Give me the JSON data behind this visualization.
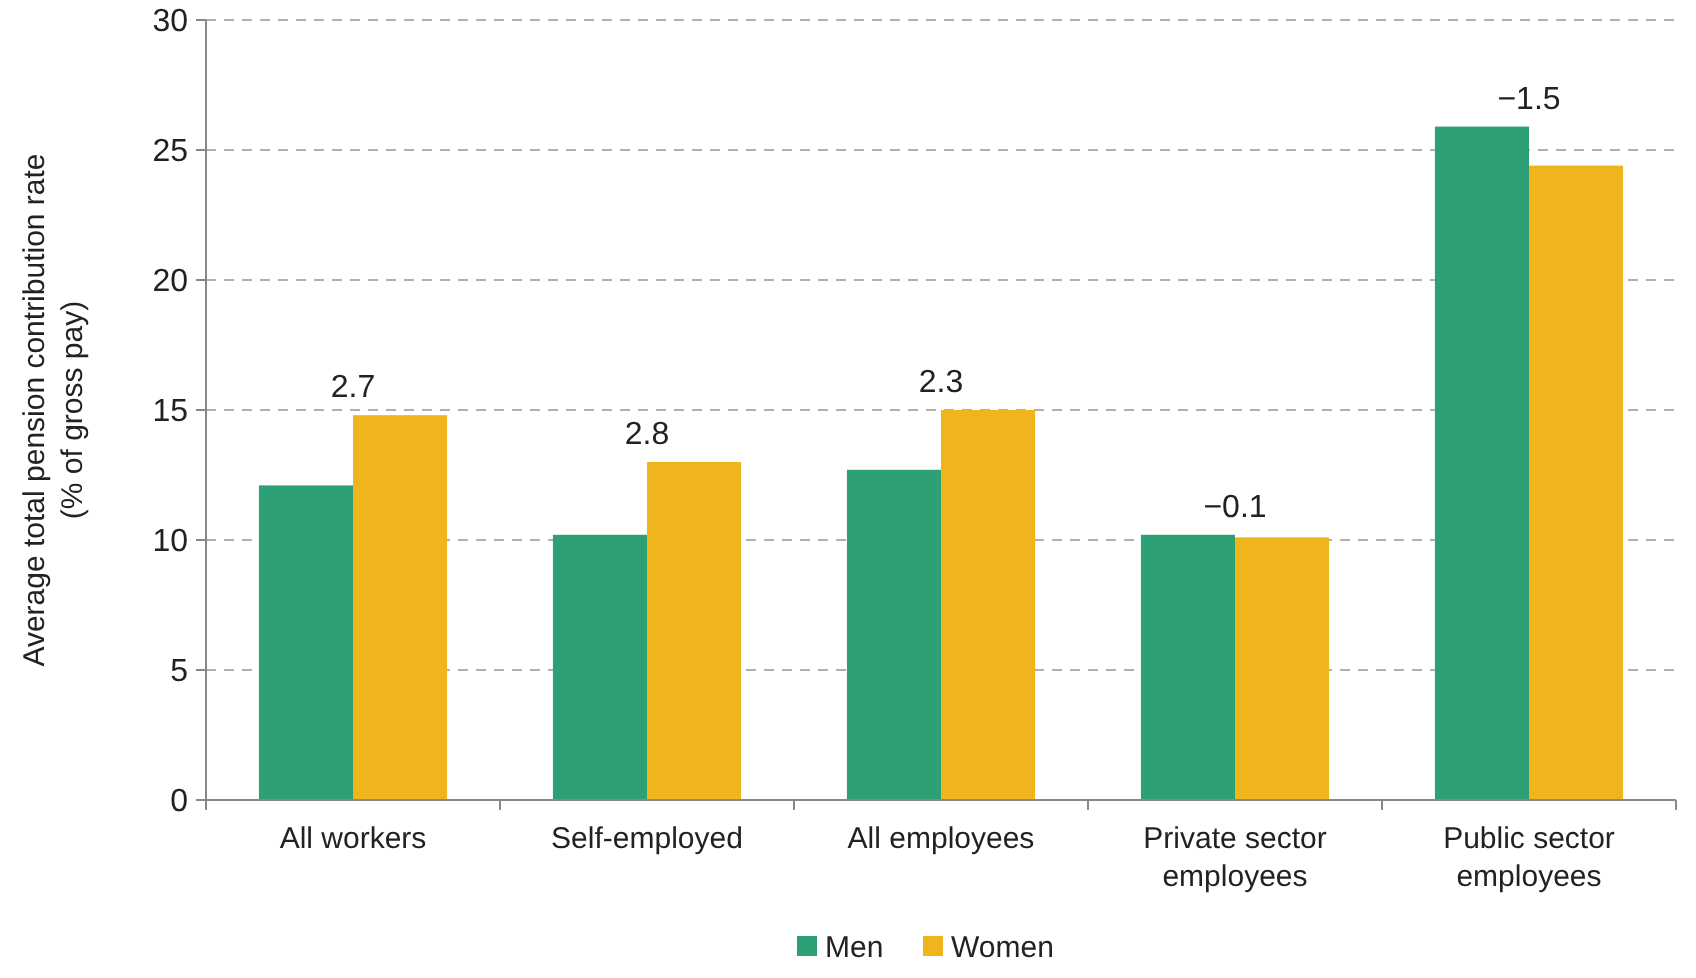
{
  "chart_data": {
    "type": "bar",
    "ylabel": "Average total pension contribution rate\n(% of gross pay)",
    "categories": [
      "All workers",
      "Self-employed",
      "All employees",
      "Private sector employees",
      "Public sector employees"
    ],
    "series": [
      {
        "name": "Men",
        "color": "#2ea076",
        "values": [
          12.1,
          10.2,
          12.7,
          10.2,
          25.9
        ]
      },
      {
        "name": "Women",
        "color": "#f0b41c",
        "values": [
          14.8,
          13.0,
          15.0,
          10.1,
          24.4
        ]
      }
    ],
    "ylim": [
      0,
      30
    ],
    "yticks": [
      0,
      5,
      10,
      15,
      20,
      25,
      30
    ],
    "grid": "y",
    "legend": "bottom",
    "annotations": [
      {
        "text": "2.7",
        "x": "All workers",
        "y": 14.8
      },
      {
        "text": "2.8",
        "x": "Self-employed",
        "y": 13.0
      },
      {
        "text": "2.3",
        "x": "All employees",
        "y": 15.0
      },
      {
        "text": "−0.1",
        "x": "Private sector employees",
        "y": 10.2
      },
      {
        "text": "−1.5",
        "x": "Public sector employees",
        "y": 25.9
      }
    ]
  }
}
